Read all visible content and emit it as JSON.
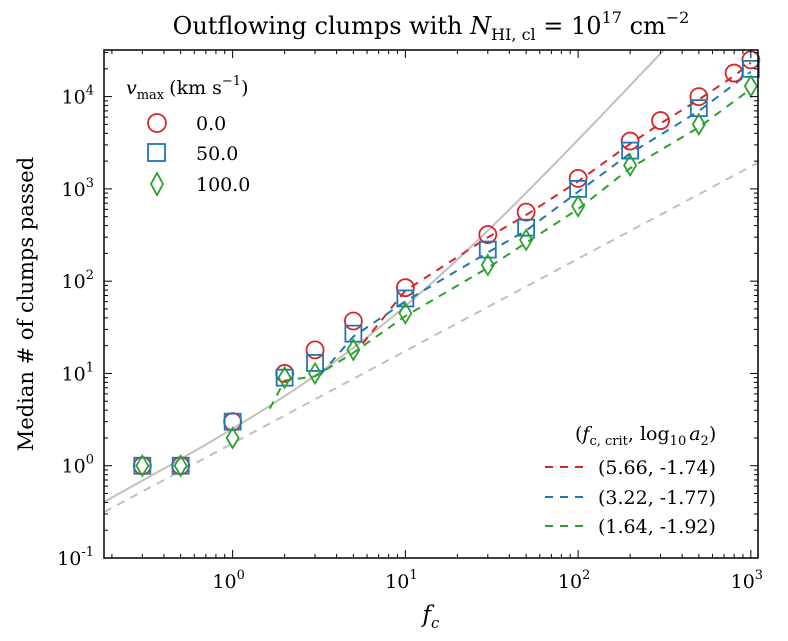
{
  "chart_data": {
    "type": "scatter",
    "title": "Outflowing clumps with N_HI,cl = 10^17 cm^-2",
    "title_parts": {
      "prefix": "Outflowing clumps with ",
      "var": "N",
      "var_sub": "HI, cl",
      "eq": " = 10",
      "exp": "17",
      "unit": " cm",
      "unit_exp": "−2"
    },
    "xlabel": "f_c",
    "xlabel_parts": {
      "var": "f",
      "sub": "c"
    },
    "ylabel": "Median # of clumps passed",
    "xscale": "log",
    "yscale": "log",
    "xlim": [
      0.18,
      1100
    ],
    "ylim": [
      0.1,
      32000
    ],
    "x_ticks": [
      {
        "value": 1,
        "label": "10",
        "exp": "0"
      },
      {
        "value": 10,
        "label": "10",
        "exp": "1"
      },
      {
        "value": 100,
        "label": "10",
        "exp": "2"
      },
      {
        "value": 1000,
        "label": "10",
        "exp": "3"
      }
    ],
    "y_ticks": [
      {
        "value": 0.1,
        "label": "10",
        "exp": "-1"
      },
      {
        "value": 1,
        "label": "10",
        "exp": "0"
      },
      {
        "value": 10,
        "label": "10",
        "exp": "1"
      },
      {
        "value": 100,
        "label": "10",
        "exp": "2"
      },
      {
        "value": 1000,
        "label": "10",
        "exp": "3"
      },
      {
        "value": 10000,
        "label": "10",
        "exp": "4"
      }
    ],
    "marker_legend": {
      "title": "v_max (km s^-1)",
      "title_parts": {
        "var": "v",
        "sub": "max",
        "unit": "(km s",
        "unit_exp": "−1",
        "close": ")"
      },
      "placement": "top-left"
    },
    "fit_legend": {
      "title": "(f_c,crit, log10 a2)",
      "title_parts": {
        "open": "(",
        "var": "f",
        "sub": "c, crit",
        "mid": ", log",
        "log_sub": "10",
        "a": "a",
        "a_sub": "2",
        "close": ")"
      },
      "placement": "bottom-right"
    },
    "series": [
      {
        "name": "0.0",
        "fit_label": "(5.66, -1.74)",
        "marker": "circle",
        "color": "#d62728",
        "points": [
          {
            "x": 0.3,
            "y": 1.0
          },
          {
            "x": 0.5,
            "y": 1.0
          },
          {
            "x": 1,
            "y": 3.0
          },
          {
            "x": 2,
            "y": 10
          },
          {
            "x": 3,
            "y": 18
          },
          {
            "x": 5,
            "y": 37
          },
          {
            "x": 10,
            "y": 85
          },
          {
            "x": 30,
            "y": 320
          },
          {
            "x": 50,
            "y": 560
          },
          {
            "x": 100,
            "y": 1300
          },
          {
            "x": 200,
            "y": 3300
          },
          {
            "x": 300,
            "y": 5500
          },
          {
            "x": 500,
            "y": 10000
          },
          {
            "x": 800,
            "y": 18000
          },
          {
            "x": 1000,
            "y": 25000
          }
        ],
        "fit": {
          "f_crit": 5.66,
          "log10_a2": -1.74,
          "x_range": [
            5.66,
            1000
          ]
        }
      },
      {
        "name": "50.0",
        "fit_label": "(3.22, -1.77)",
        "marker": "square",
        "color": "#1f77b4",
        "points": [
          {
            "x": 0.3,
            "y": 1.0
          },
          {
            "x": 0.5,
            "y": 1.0
          },
          {
            "x": 1,
            "y": 3.0
          },
          {
            "x": 2,
            "y": 9
          },
          {
            "x": 3,
            "y": 13
          },
          {
            "x": 5,
            "y": 27
          },
          {
            "x": 10,
            "y": 65
          },
          {
            "x": 30,
            "y": 220
          },
          {
            "x": 50,
            "y": 380
          },
          {
            "x": 100,
            "y": 1000
          },
          {
            "x": 200,
            "y": 2600
          },
          {
            "x": 500,
            "y": 7500
          },
          {
            "x": 1000,
            "y": 20000
          }
        ],
        "fit": {
          "f_crit": 3.22,
          "log10_a2": -1.77,
          "x_range": [
            3.22,
            1000
          ]
        }
      },
      {
        "name": "100.0",
        "fit_label": "(1.64, -1.92)",
        "marker": "diamond",
        "color": "#2ca02c",
        "points": [
          {
            "x": 0.3,
            "y": 1.0
          },
          {
            "x": 0.5,
            "y": 1.0
          },
          {
            "x": 1,
            "y": 2.0
          },
          {
            "x": 2,
            "y": 9
          },
          {
            "x": 3,
            "y": 10
          },
          {
            "x": 5,
            "y": 18
          },
          {
            "x": 10,
            "y": 45
          },
          {
            "x": 30,
            "y": 150
          },
          {
            "x": 50,
            "y": 280
          },
          {
            "x": 100,
            "y": 650
          },
          {
            "x": 200,
            "y": 1800
          },
          {
            "x": 500,
            "y": 5000
          },
          {
            "x": 1000,
            "y": 13000
          }
        ],
        "fit": {
          "f_crit": 1.64,
          "log10_a2": -1.92,
          "x_range": [
            1.64,
            1000
          ]
        }
      }
    ],
    "reference_lines": [
      {
        "name": "linear-reference",
        "style": "dashed",
        "color": "#c0c0c0",
        "slope": 1.0,
        "y_at_x1": 1.75
      },
      {
        "name": "quadratic-reference",
        "style": "solid",
        "color": "#c0c0c0",
        "formula": "y = 2.2 x (1 + x/6.9)"
      }
    ]
  }
}
